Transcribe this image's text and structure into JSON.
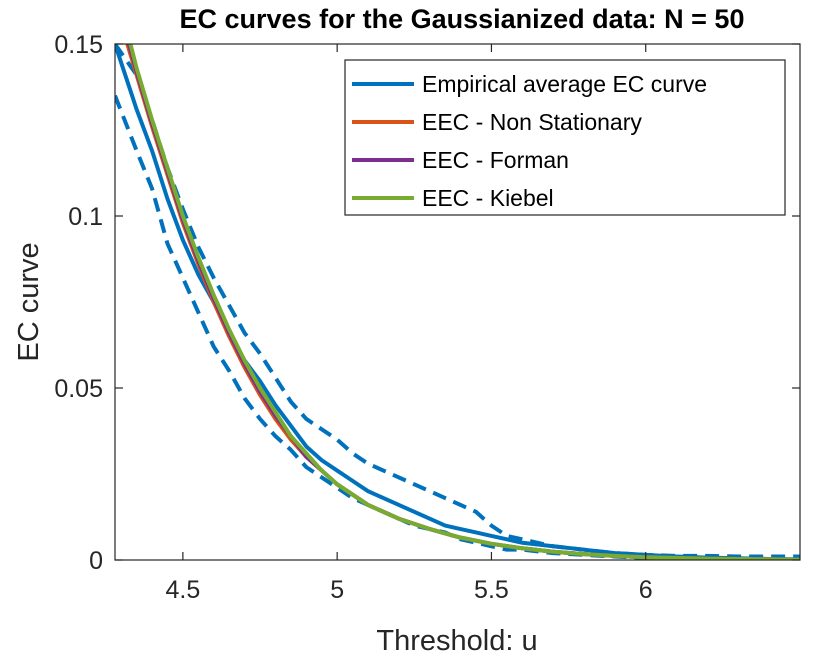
{
  "chart_data": {
    "type": "line",
    "title": "EC curves for the Gaussianized data: N = 50",
    "xlabel": "Threshold: u",
    "ylabel": "EC curve",
    "xlim": [
      4.28,
      6.5
    ],
    "ylim": [
      0,
      0.15
    ],
    "xticks": [
      4.5,
      5,
      5.5,
      6
    ],
    "xtick_labels": [
      "4.5",
      "5",
      "5.5",
      "6"
    ],
    "yticks": [
      0,
      0.05,
      0.1,
      0.15
    ],
    "ytick_labels": [
      "0",
      "0.05",
      "0.1",
      "0.15"
    ],
    "grid": false,
    "legend_position": "top-right",
    "series": [
      {
        "name": "Empirical average EC curve",
        "color": "#0072BD",
        "style": "solid",
        "x": [
          4.28,
          4.35,
          4.4,
          4.45,
          4.5,
          4.55,
          4.6,
          4.65,
          4.7,
          4.75,
          4.8,
          4.85,
          4.9,
          4.95,
          5.0,
          5.05,
          5.1,
          5.15,
          5.2,
          5.25,
          5.3,
          5.35,
          5.4,
          5.45,
          5.5,
          5.55,
          5.6,
          5.7,
          5.8,
          5.9,
          6.0,
          6.1,
          6.2,
          6.3,
          6.4,
          6.5
        ],
        "y": [
          0.15,
          0.131,
          0.119,
          0.105,
          0.093,
          0.083,
          0.075,
          0.066,
          0.058,
          0.052,
          0.045,
          0.039,
          0.033,
          0.029,
          0.026,
          0.023,
          0.02,
          0.018,
          0.016,
          0.014,
          0.012,
          0.01,
          0.009,
          0.008,
          0.007,
          0.006,
          0.005,
          0.004,
          0.003,
          0.002,
          0.0015,
          0.001,
          0.0007,
          0.0005,
          0.0003,
          0.0002
        ]
      },
      {
        "name": "EEC - Non Stationary",
        "color": "#D95319",
        "style": "solid",
        "x": [
          4.32,
          4.35,
          4.4,
          4.45,
          4.5,
          4.55,
          4.6,
          4.65,
          4.7,
          4.75,
          4.8,
          4.85,
          4.9,
          4.95,
          5.0,
          5.1,
          5.2,
          5.3,
          5.4,
          5.5,
          5.6,
          5.7,
          5.8,
          5.9,
          6.0,
          6.2,
          6.4,
          6.5
        ],
        "y": [
          0.15,
          0.141,
          0.126,
          0.112,
          0.098,
          0.086,
          0.075,
          0.065,
          0.056,
          0.048,
          0.041,
          0.035,
          0.03,
          0.026,
          0.022,
          0.016,
          0.012,
          0.009,
          0.0065,
          0.0047,
          0.0034,
          0.0024,
          0.0017,
          0.0012,
          0.0008,
          0.0004,
          0.0002,
          0.0001
        ]
      },
      {
        "name": "EEC - Forman",
        "color": "#7E2F8E",
        "style": "solid",
        "x": [
          4.325,
          4.35,
          4.4,
          4.45,
          4.5,
          4.55,
          4.6,
          4.65,
          4.7,
          4.75,
          4.8,
          4.85,
          4.9,
          4.95,
          5.0,
          5.1,
          5.2,
          5.3,
          5.4,
          5.5,
          5.6,
          5.7,
          5.8,
          5.9,
          6.0,
          6.2,
          6.4,
          6.5
        ],
        "y": [
          0.15,
          0.142,
          0.127,
          0.113,
          0.099,
          0.087,
          0.076,
          0.066,
          0.057,
          0.049,
          0.042,
          0.036,
          0.03,
          0.026,
          0.022,
          0.016,
          0.012,
          0.009,
          0.0065,
          0.0047,
          0.0034,
          0.0024,
          0.0017,
          0.0012,
          0.0008,
          0.0004,
          0.0002,
          0.0001
        ]
      },
      {
        "name": "EEC - Kiebel",
        "color": "#77AC30",
        "style": "solid",
        "x": [
          4.33,
          4.35,
          4.4,
          4.45,
          4.5,
          4.55,
          4.6,
          4.65,
          4.7,
          4.75,
          4.8,
          4.85,
          4.9,
          4.95,
          5.0,
          5.1,
          5.2,
          5.3,
          5.4,
          5.5,
          5.6,
          5.7,
          5.8,
          5.9,
          6.0,
          6.2,
          6.4,
          6.5
        ],
        "y": [
          0.15,
          0.143,
          0.128,
          0.114,
          0.1,
          0.088,
          0.077,
          0.067,
          0.058,
          0.05,
          0.043,
          0.036,
          0.031,
          0.026,
          0.022,
          0.016,
          0.012,
          0.009,
          0.0065,
          0.0047,
          0.0034,
          0.0024,
          0.0017,
          0.0012,
          0.0008,
          0.0004,
          0.0002,
          0.0001
        ]
      },
      {
        "color": "#0072BD",
        "style": "dashed",
        "x": [
          4.28,
          4.35,
          4.4,
          4.45,
          4.5,
          4.55,
          4.6,
          4.65,
          4.7,
          4.75,
          4.8,
          4.85,
          4.9,
          4.95,
          5.0,
          5.05,
          5.1,
          5.15,
          5.2,
          5.25,
          5.3,
          5.35,
          5.4,
          5.45,
          5.5,
          5.55,
          5.6,
          5.7,
          5.8,
          5.9,
          6.0,
          6.1,
          6.2,
          6.3,
          6.4,
          6.5
        ],
        "y": [
          0.15,
          0.141,
          0.128,
          0.114,
          0.102,
          0.091,
          0.082,
          0.074,
          0.066,
          0.06,
          0.053,
          0.046,
          0.041,
          0.038,
          0.035,
          0.031,
          0.028,
          0.026,
          0.024,
          0.022,
          0.02,
          0.018,
          0.016,
          0.014,
          0.01,
          0.007,
          0.006,
          0.004,
          0.003,
          0.002,
          0.0015,
          0.0012,
          0.0012,
          0.001,
          0.001,
          0.001
        ]
      },
      {
        "color": "#0072BD",
        "style": "dashed",
        "x": [
          4.28,
          4.35,
          4.4,
          4.45,
          4.5,
          4.55,
          4.6,
          4.65,
          4.7,
          4.75,
          4.8,
          4.85,
          4.9,
          4.95,
          5.0,
          5.05,
          5.1,
          5.15,
          5.2,
          5.25,
          5.3,
          5.35,
          5.4,
          5.45,
          5.5,
          5.55,
          5.6,
          5.7,
          5.8,
          5.9,
          6.0,
          6.1,
          6.2,
          6.3,
          6.4,
          6.5
        ],
        "y": [
          0.135,
          0.119,
          0.108,
          0.092,
          0.082,
          0.072,
          0.062,
          0.055,
          0.047,
          0.041,
          0.036,
          0.032,
          0.027,
          0.024,
          0.021,
          0.018,
          0.016,
          0.014,
          0.012,
          0.01,
          0.009,
          0.008,
          0.006,
          0.005,
          0.004,
          0.003,
          0.003,
          0.002,
          0.0015,
          0.001,
          0.0006,
          0.0003,
          0.0002,
          0.0001,
          0.0,
          0.0
        ]
      }
    ]
  }
}
